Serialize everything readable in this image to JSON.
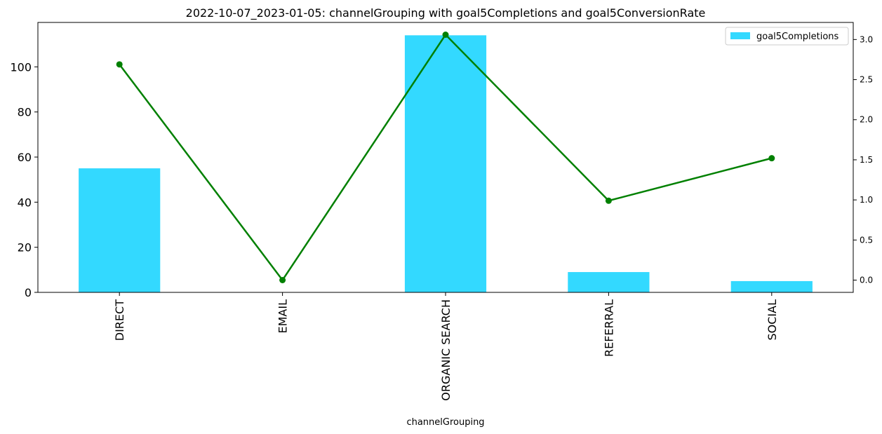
{
  "chart_data": {
    "type": "bar+line",
    "title": "2022-10-07_2023-01-05: channelGrouping with goal5Completions and goal5ConversionRate",
    "xlabel": "channelGrouping",
    "categories": [
      "DIRECT",
      "EMAIL",
      "ORGANIC SEARCH",
      "REFERRAL",
      "SOCIAL"
    ],
    "series": [
      {
        "name": "goal5Completions",
        "kind": "bar",
        "axis": "left",
        "values": [
          55,
          0,
          114,
          9,
          5
        ],
        "color": "#33d9ff"
      },
      {
        "name": "goal5ConversionRate",
        "kind": "line",
        "axis": "right",
        "values": [
          2.69,
          0.0,
          3.06,
          0.99,
          1.52
        ],
        "color": "#008000"
      }
    ],
    "y_left": {
      "lim": [
        0,
        119.7
      ],
      "ticks": [
        0,
        20,
        40,
        60,
        80,
        100
      ]
    },
    "y_right": {
      "lim": [
        -0.153,
        3.213
      ],
      "ticks": [
        0.0,
        0.5,
        1.0,
        1.5,
        2.0,
        2.5,
        3.0
      ],
      "tick_labels": [
        "0.0",
        "0.5",
        "1.0",
        "1.5",
        "2.0",
        "2.5",
        "3.0"
      ]
    },
    "legend": {
      "entries": [
        "goal5Completions"
      ],
      "position": "top-right"
    }
  }
}
